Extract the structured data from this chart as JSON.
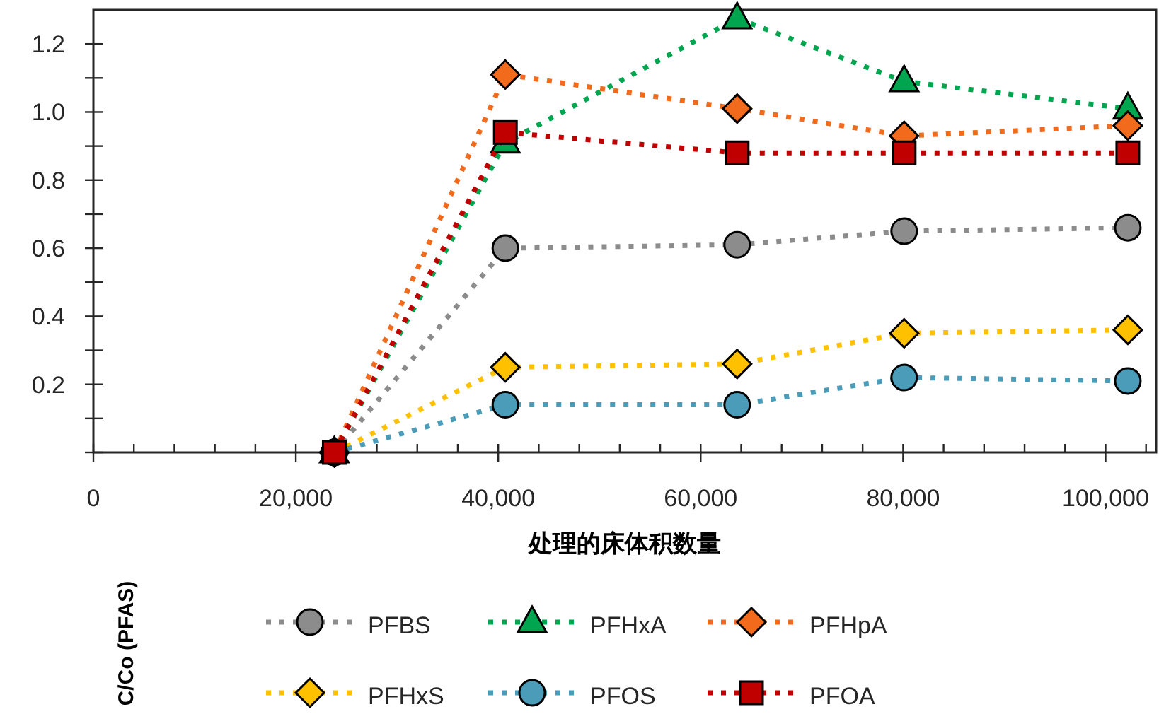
{
  "chart_data": {
    "type": "line",
    "xlabel": "处理的床体积数量",
    "ylabel": "C/Co (PFAS)",
    "x": [
      23800,
      40700,
      63600,
      80100,
      102200
    ],
    "xlim": [
      0,
      105000
    ],
    "xticks": [
      {
        "value": 0,
        "label": "0"
      },
      {
        "value": 4000,
        "label": null
      },
      {
        "value": 8000,
        "label": null
      },
      {
        "value": 12000,
        "label": null
      },
      {
        "value": 16000,
        "label": null
      },
      {
        "value": 20000,
        "label": "20,000"
      },
      {
        "value": 24000,
        "label": null
      },
      {
        "value": 28000,
        "label": null
      },
      {
        "value": 32000,
        "label": null
      },
      {
        "value": 36000,
        "label": null
      },
      {
        "value": 40000,
        "label": "40,000"
      },
      {
        "value": 44000,
        "label": null
      },
      {
        "value": 48000,
        "label": null
      },
      {
        "value": 52000,
        "label": null
      },
      {
        "value": 56000,
        "label": null
      },
      {
        "value": 60000,
        "label": "60,000"
      },
      {
        "value": 64000,
        "label": null
      },
      {
        "value": 68000,
        "label": null
      },
      {
        "value": 72000,
        "label": null
      },
      {
        "value": 76000,
        "label": null
      },
      {
        "value": 80000,
        "label": "80,000"
      },
      {
        "value": 84000,
        "label": null
      },
      {
        "value": 88000,
        "label": null
      },
      {
        "value": 92000,
        "label": null
      },
      {
        "value": 96000,
        "label": null
      },
      {
        "value": 100000,
        "label": "100,000"
      },
      {
        "value": 104000,
        "label": null
      }
    ],
    "ylim": [
      0,
      1.3
    ],
    "yticks": [
      {
        "value": 0,
        "label": null
      },
      {
        "value": 0.1,
        "label": null
      },
      0.2,
      {
        "value": 0.3,
        "label": null
      },
      0.4,
      {
        "value": 0.5,
        "label": null
      },
      0.6,
      {
        "value": 0.7,
        "label": null
      },
      0.8,
      {
        "value": 0.9,
        "label": null
      },
      {
        "value": 1,
        "label": "1.0"
      },
      {
        "value": 1.1,
        "label": null
      },
      1.2
    ],
    "grid": false,
    "legend": "bottom",
    "line_style": "dotted",
    "series": [
      {
        "name": "PFBS",
        "color": "#8c8c8c",
        "marker": "circle",
        "values": [
          0,
          0.6,
          0.61,
          0.65,
          0.66
        ]
      },
      {
        "name": "PFHxA",
        "color": "#00a64f",
        "marker": "triangle",
        "values": [
          0,
          0.91,
          1.275,
          1.09,
          1.01
        ]
      },
      {
        "name": "PFHpA",
        "color": "#f26b1d",
        "marker": "diamond",
        "values": [
          0,
          1.11,
          1.01,
          0.93,
          0.96
        ]
      },
      {
        "name": "PFHxS",
        "color": "#ffc000",
        "marker": "diamond",
        "values": [
          0,
          0.25,
          0.26,
          0.35,
          0.36
        ]
      },
      {
        "name": "PFOS",
        "color": "#4a9cb8",
        "marker": "circle",
        "values": [
          0,
          0.14,
          0.14,
          0.22,
          0.21
        ]
      },
      {
        "name": "PFOA",
        "color": "#c00000",
        "marker": "square",
        "values": [
          0,
          0.94,
          0.88,
          0.88,
          0.88
        ]
      }
    ]
  }
}
